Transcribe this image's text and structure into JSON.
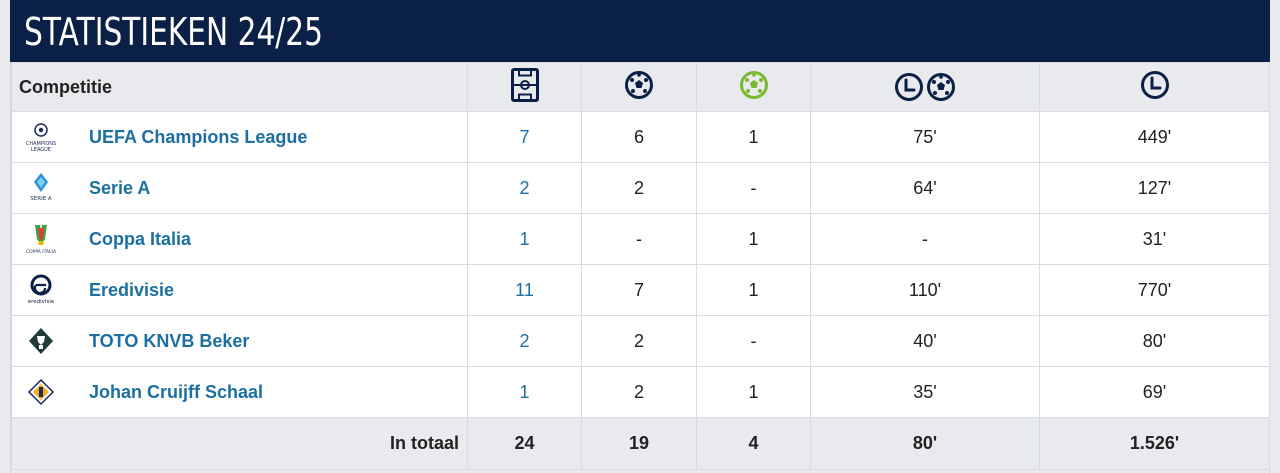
{
  "header": {
    "title": "STATISTIEKEN 24/25"
  },
  "table": {
    "competition_header": "Competitie",
    "column_icons": [
      "pitch-icon",
      "ball-icon",
      "assist-ball-icon",
      "clock-ball-icon",
      "clock-icon"
    ],
    "rows": [
      {
        "competition": "UEFA Champions League",
        "logo": "champions-league-logo",
        "matches": "7",
        "goals": "6",
        "assists": "1",
        "minutes_per_goal": "75'",
        "minutes": "449'"
      },
      {
        "competition": "Serie A",
        "logo": "serie-a-logo",
        "matches": "2",
        "goals": "2",
        "assists": "-",
        "minutes_per_goal": "64'",
        "minutes": "127'"
      },
      {
        "competition": "Coppa Italia",
        "logo": "coppa-italia-logo",
        "matches": "1",
        "goals": "-",
        "assists": "1",
        "minutes_per_goal": "-",
        "minutes": "31'"
      },
      {
        "competition": "Eredivisie",
        "logo": "eredivisie-logo",
        "matches": "11",
        "goals": "7",
        "assists": "1",
        "minutes_per_goal": "110'",
        "minutes": "770'"
      },
      {
        "competition": "TOTO KNVB Beker",
        "logo": "knvb-beker-logo",
        "matches": "2",
        "goals": "2",
        "assists": "-",
        "minutes_per_goal": "40'",
        "minutes": "80'"
      },
      {
        "competition": "Johan Cruijff Schaal",
        "logo": "johan-cruijff-schaal-logo",
        "matches": "1",
        "goals": "2",
        "assists": "1",
        "minutes_per_goal": "35'",
        "minutes": "69'"
      }
    ],
    "total": {
      "label": "In totaal",
      "matches": "24",
      "goals": "19",
      "assists": "4",
      "minutes_per_goal": "80'",
      "minutes": "1.526'"
    }
  },
  "logo_texts": {
    "champions_league": "CHAMPIONS LEAGUE",
    "serie_a": "SERIE A",
    "coppa_italia": "COPPA ITALIA",
    "eredivisie": "eredivisie"
  },
  "colors": {
    "header_bg": "#0b2046",
    "link": "#1d6fa1",
    "assist_green": "#7ab82f",
    "icon_navy": "#0b2046"
  }
}
